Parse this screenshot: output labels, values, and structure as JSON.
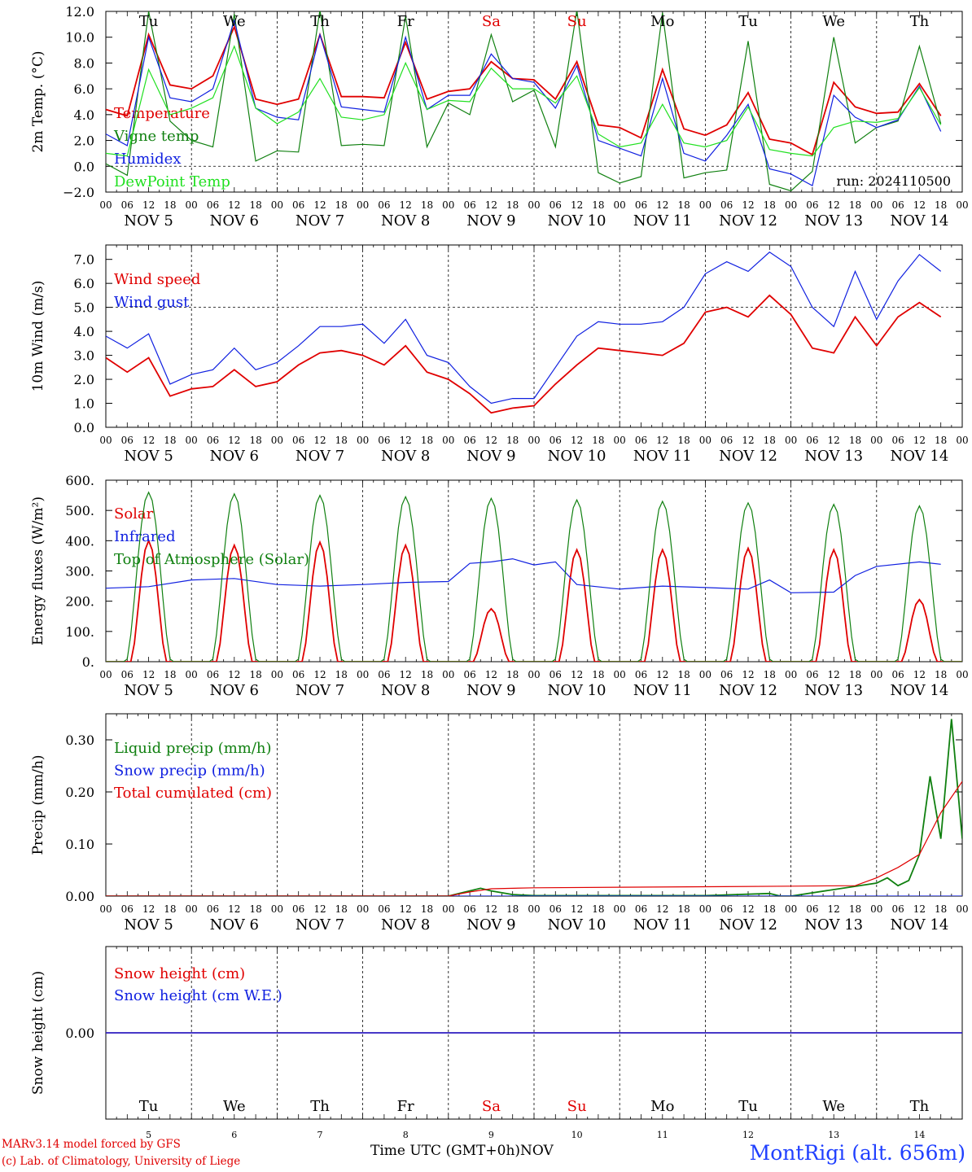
{
  "footer": {
    "credit_line1": "MARv3.14 model forced by GFS",
    "credit_line2": "(c) Lab. of Climatology, University of Liege",
    "station": "MontRigi (alt. 656m)",
    "xlabel": "Time UTC (GMT+0h)",
    "xlabel_month": "NOV"
  },
  "colors": {
    "red": "#e00000",
    "green": "#108010",
    "blue": "#1020e0",
    "lightgreen": "#20e020",
    "weekend": "#e00000"
  },
  "chart_data": {
    "days": [
      "Tu",
      "We",
      "Th",
      "Fr",
      "Sa",
      "Su",
      "Mo",
      "Tu",
      "We",
      "Th"
    ],
    "weekend_days": [
      "Sa",
      "Su"
    ],
    "dates": [
      "NOV  5",
      "NOV  6",
      "NOV  7",
      "NOV  8",
      "NOV  9",
      "NOV 10",
      "NOV 11",
      "NOV 12",
      "NOV 13",
      "NOV 14"
    ],
    "date_numbers": [
      "5",
      "6",
      "7",
      "8",
      "9",
      "10",
      "11",
      "12",
      "13",
      "14"
    ],
    "hour_ticks": [
      "00",
      "06",
      "12",
      "18"
    ],
    "panels": [
      {
        "type": "line",
        "ylabel": "2m Temp. (°C)",
        "ylim": [
          -2,
          12
        ],
        "yticks": [
          "−2.0",
          "0.0",
          "2.0",
          "4.0",
          "6.0",
          "8.0",
          "10.0",
          "12.0"
        ],
        "ref_line": 0,
        "annotation": "run: 2024110500",
        "x_hours": [
          0,
          6,
          12,
          18,
          24,
          30,
          36,
          42,
          48,
          54,
          60,
          66,
          72,
          78,
          84,
          90,
          96,
          102,
          108,
          114,
          120,
          126,
          132,
          138,
          144,
          150,
          156,
          162,
          168,
          174,
          180,
          186,
          192,
          198,
          204,
          210,
          216,
          222,
          228,
          234
        ],
        "series": [
          {
            "name": "Temperature",
            "color": "#e00000",
            "values": [
              4.4,
              3.9,
              10.2,
              6.3,
              6.0,
              7.0,
              10.8,
              5.2,
              4.8,
              5.2,
              10.2,
              5.4,
              5.4,
              5.3,
              9.6,
              5.2,
              5.8,
              6.0,
              8.1,
              6.8,
              6.7,
              5.2,
              8.1,
              3.2,
              3.0,
              2.2,
              7.5,
              2.9,
              2.4,
              3.2,
              5.7,
              2.1,
              1.8,
              0.9,
              6.5,
              4.6,
              4.1,
              4.2,
              6.4,
              3.9
            ]
          },
          {
            "name": "Vigne temp",
            "color": "#108010",
            "values": [
              0.2,
              -0.7,
              12.0,
              3.5,
              2.0,
              1.5,
              11.8,
              0.4,
              1.2,
              1.1,
              12.1,
              1.6,
              1.7,
              1.6,
              11.6,
              1.5,
              4.9,
              4.0,
              10.2,
              5.0,
              5.9,
              1.5,
              12.1,
              -0.5,
              -1.3,
              -0.8,
              11.9,
              -0.9,
              -0.5,
              -0.3,
              9.7,
              -1.4,
              -1.9,
              -0.4,
              10.0,
              1.8,
              3.0,
              3.5,
              9.3,
              3.3
            ]
          },
          {
            "name": "Humidex",
            "color": "#1020e0",
            "values": [
              2.5,
              1.6,
              10.0,
              5.3,
              5.0,
              6.0,
              11.3,
              4.5,
              3.8,
              3.6,
              10.2,
              4.6,
              4.4,
              4.2,
              10.0,
              4.4,
              5.5,
              5.5,
              8.7,
              6.8,
              6.5,
              4.5,
              7.8,
              2.0,
              1.4,
              0.8,
              6.8,
              1.0,
              0.4,
              2.4,
              4.8,
              -0.2,
              -0.6,
              -1.5,
              5.5,
              3.8,
              3.0,
              3.6,
              6.2,
              2.7
            ]
          },
          {
            "name": "DewPoint Temp",
            "color": "#20e020",
            "values": [
              1.0,
              0.8,
              7.5,
              4.0,
              4.5,
              5.3,
              9.3,
              4.5,
              3.3,
              4.2,
              6.8,
              3.8,
              3.6,
              4.0,
              8.0,
              4.4,
              5.1,
              5.0,
              7.6,
              6.0,
              6.0,
              4.9,
              7.0,
              2.5,
              1.5,
              1.8,
              4.8,
              1.8,
              1.5,
              2.0,
              4.6,
              1.3,
              1.0,
              0.8,
              3.0,
              3.5,
              3.4,
              3.7,
              6.1,
              3.2
            ]
          }
        ]
      },
      {
        "type": "line",
        "ylabel": "10m Wind (m/s)",
        "ylim": [
          0,
          7.6
        ],
        "yticks": [
          "0.0",
          "1.0",
          "2.0",
          "3.0",
          "4.0",
          "5.0",
          "6.0",
          "7.0"
        ],
        "ref_line": 5,
        "x_hours": [
          0,
          6,
          12,
          18,
          24,
          30,
          36,
          42,
          48,
          54,
          60,
          66,
          72,
          78,
          84,
          90,
          96,
          102,
          108,
          114,
          120,
          126,
          132,
          138,
          144,
          150,
          156,
          162,
          168,
          174,
          180,
          186,
          192,
          198,
          204,
          210,
          216,
          222,
          228,
          234
        ],
        "series": [
          {
            "name": "Wind speed",
            "color": "#e00000",
            "values": [
              2.9,
              2.3,
              2.9,
              1.3,
              1.6,
              1.7,
              2.4,
              1.7,
              1.9,
              2.6,
              3.1,
              3.2,
              3.0,
              2.6,
              3.4,
              2.3,
              2.0,
              1.4,
              0.6,
              0.8,
              0.9,
              1.8,
              2.6,
              3.3,
              3.2,
              3.1,
              3.0,
              3.5,
              4.8,
              5.0,
              4.6,
              5.5,
              4.7,
              3.3,
              3.1,
              4.6,
              3.4,
              4.6,
              5.2,
              4.6
            ]
          },
          {
            "name": "Wind gust",
            "color": "#1020e0",
            "values": [
              3.8,
              3.3,
              3.9,
              1.8,
              2.2,
              2.4,
              3.3,
              2.4,
              2.7,
              3.4,
              4.2,
              4.2,
              4.3,
              3.5,
              4.5,
              3.0,
              2.7,
              1.7,
              1.0,
              1.2,
              1.2,
              2.5,
              3.8,
              4.4,
              4.3,
              4.3,
              4.4,
              5.0,
              6.4,
              6.9,
              6.5,
              7.3,
              6.7,
              5.0,
              4.2,
              6.5,
              4.5,
              6.1,
              7.2,
              6.5
            ]
          }
        ]
      },
      {
        "type": "line",
        "ylabel": "Energy fluxes (W/m²)",
        "ylim": [
          0,
          600
        ],
        "yticks": [
          "0.",
          "100.",
          "200.",
          "300.",
          "400.",
          "500.",
          "600."
        ],
        "series": [
          {
            "name": "Solar",
            "color": "#e00000",
            "daily_peaks": [
              400,
              385,
              395,
              385,
              175,
              370,
              370,
              375,
              370,
              205
            ]
          },
          {
            "name": "Infrared",
            "color": "#1020e0",
            "x_hours": [
              0,
              12,
              24,
              36,
              48,
              60,
              72,
              84,
              96,
              102,
              108,
              114,
              120,
              126,
              132,
              144,
              156,
              168,
              180,
              186,
              192,
              204,
              210,
              216,
              228,
              234
            ],
            "values": [
              243,
              248,
              270,
              275,
              255,
              250,
              255,
              262,
              265,
              325,
              330,
              340,
              320,
              330,
              255,
              240,
              250,
              245,
              240,
              270,
              228,
              230,
              285,
              315,
              330,
              322
            ]
          },
          {
            "name": "Top of Atmosphere (Solar)",
            "color": "#108010",
            "daily_peaks": [
              560,
              555,
              550,
              545,
              540,
              535,
              530,
              525,
              520,
              515
            ]
          }
        ]
      },
      {
        "type": "line",
        "ylabel": "Precip (mm/h)",
        "ylim": [
          0,
          0.35
        ],
        "yticks": [
          "0.00",
          "0.10",
          "0.20",
          "0.30"
        ],
        "series": [
          {
            "name": "Liquid precip (mm/h)",
            "color": "#108010",
            "x_hours": [
              0,
              96,
              99,
              105,
              108,
              114,
              120,
              168,
              186,
              189,
              192,
              216,
              219,
              222,
              225,
              228,
              231,
              234,
              237,
              240
            ],
            "values": [
              0,
              0,
              0.005,
              0.015,
              0.01,
              0.003,
              0.001,
              0.001,
              0.005,
              0.0,
              0.0,
              0.025,
              0.035,
              0.02,
              0.03,
              0.08,
              0.23,
              0.11,
              0.34,
              0.11
            ]
          },
          {
            "name": "Snow precip (mm/h)",
            "color": "#1020e0",
            "x_hours": [
              0,
              240
            ],
            "values": [
              0,
              0
            ]
          },
          {
            "name": "Total cumulated (cm)",
            "color": "#e00000",
            "x_hours": [
              0,
              96,
              102,
              108,
              120,
              144,
              168,
              192,
              210,
              216,
              222,
              228,
              234,
              237,
              240
            ],
            "values": [
              0,
              0,
              0.008,
              0.014,
              0.016,
              0.017,
              0.018,
              0.019,
              0.02,
              0.035,
              0.055,
              0.08,
              0.16,
              0.19,
              0.22
            ]
          }
        ]
      },
      {
        "type": "line",
        "ylabel": "Snow height (cm)",
        "ylim": [
          -1,
          1
        ],
        "yticks": [
          "0.00"
        ],
        "series": [
          {
            "name": "Snow height (cm)",
            "color": "#e00000",
            "x_hours": [
              0,
              240
            ],
            "values": [
              0,
              0
            ]
          },
          {
            "name": "Snow height (cm W.E.)",
            "color": "#1020e0",
            "x_hours": [
              0,
              240
            ],
            "values": [
              0,
              0
            ]
          }
        ]
      }
    ]
  }
}
